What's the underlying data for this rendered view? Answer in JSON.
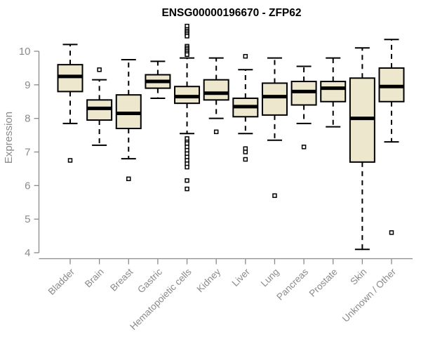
{
  "chart_data": {
    "type": "boxplot",
    "title": "ENSG00000196670 - ZFP62",
    "ylabel": "Expression",
    "xlabel": "",
    "ylim": [
      4,
      10
    ],
    "yticks": [
      4,
      5,
      6,
      7,
      8,
      9,
      10
    ],
    "grid": false,
    "legend": "none",
    "categories": [
      "Bladder",
      "Brain",
      "Breast",
      "Gastric",
      "Hematopoietic cells",
      "Kidney",
      "Liver",
      "Lung",
      "Pancreas",
      "Prostate",
      "Skin",
      "Unknown / Other"
    ],
    "series": [
      {
        "category": "Bladder",
        "whisker_low": 7.85,
        "q1": 8.8,
        "median": 9.25,
        "q3": 9.6,
        "whisker_high": 10.2,
        "outliers": [
          6.75
        ]
      },
      {
        "category": "Brain",
        "whisker_low": 7.2,
        "q1": 7.95,
        "median": 8.3,
        "q3": 8.55,
        "whisker_high": 9.15,
        "outliers": [
          9.45
        ]
      },
      {
        "category": "Breast",
        "whisker_low": 6.8,
        "q1": 7.7,
        "median": 8.15,
        "q3": 8.7,
        "whisker_high": 9.75,
        "outliers": [
          6.2
        ]
      },
      {
        "category": "Gastric",
        "whisker_low": 8.6,
        "q1": 8.9,
        "median": 9.1,
        "q3": 9.3,
        "whisker_high": 9.7,
        "outliers": []
      },
      {
        "category": "Hematopoietic cells",
        "whisker_low": 7.55,
        "q1": 8.45,
        "median": 8.65,
        "q3": 8.95,
        "whisker_high": 9.8,
        "outliers": [
          10.75,
          10.65,
          10.6,
          10.55,
          10.5,
          10.45,
          10.15,
          10.1,
          10.05,
          10.0,
          9.95,
          9.9,
          7.4,
          7.3,
          7.25,
          7.15,
          7.05,
          6.95,
          6.85,
          6.75,
          6.65,
          6.55,
          6.15,
          5.9
        ]
      },
      {
        "category": "Kidney",
        "whisker_low": 8.0,
        "q1": 8.55,
        "median": 8.75,
        "q3": 9.15,
        "whisker_high": 9.8,
        "outliers": [
          7.6
        ]
      },
      {
        "category": "Liver",
        "whisker_low": 7.55,
        "q1": 8.05,
        "median": 8.35,
        "q3": 8.6,
        "whisker_high": 9.45,
        "outliers": [
          9.85,
          7.1,
          7.0,
          6.78
        ]
      },
      {
        "category": "Lung",
        "whisker_low": 7.35,
        "q1": 8.1,
        "median": 8.65,
        "q3": 9.05,
        "whisker_high": 9.8,
        "outliers": [
          5.7
        ]
      },
      {
        "category": "Pancreas",
        "whisker_low": 7.85,
        "q1": 8.4,
        "median": 8.8,
        "q3": 9.1,
        "whisker_high": 9.55,
        "outliers": [
          7.15
        ]
      },
      {
        "category": "Prostate",
        "whisker_low": 7.75,
        "q1": 8.5,
        "median": 8.9,
        "q3": 9.1,
        "whisker_high": 9.8,
        "outliers": []
      },
      {
        "category": "Skin",
        "whisker_low": 4.1,
        "q1": 6.7,
        "median": 8.0,
        "q3": 9.2,
        "whisker_high": 10.1,
        "outliers": []
      },
      {
        "category": "Unknown / Other",
        "whisker_low": 7.3,
        "q1": 8.5,
        "median": 8.95,
        "q3": 9.5,
        "whisker_high": 10.35,
        "outliers": [
          4.6
        ]
      }
    ],
    "colors": {
      "box_fill": "#ece7cd",
      "box_stroke": "#000000",
      "median_stroke": "#000000",
      "whisker_stroke": "#000000",
      "outlier_stroke": "#000000",
      "axis_color": "#8a8a8a",
      "tick_label_color": "#8a8a8a",
      "axis_label_color": "#8a8a8a",
      "title_color": "#000000",
      "background": "#ffffff"
    }
  }
}
